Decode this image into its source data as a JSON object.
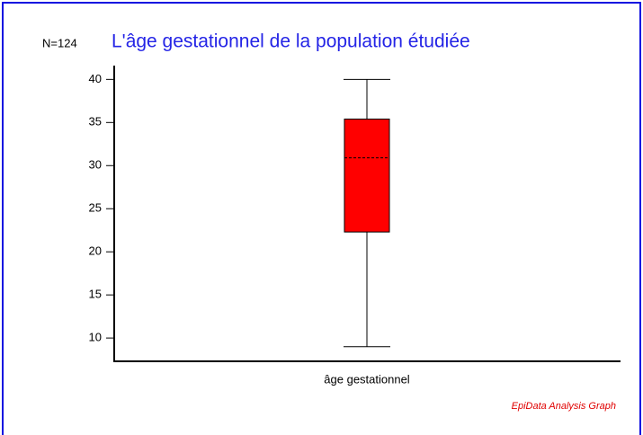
{
  "chart_data": {
    "type": "box",
    "title": "L'âge gestationnel de la population étudiée",
    "note": "N=124",
    "footer": "EpiData Analysis Graph",
    "categories": [
      "âge gestationnel"
    ],
    "boxes": [
      {
        "min": 9,
        "q1": 22.3,
        "median": 30.9,
        "q3": 35.4,
        "max": 40
      }
    ],
    "color": "#ff0000",
    "ylim": [
      7.3,
      41.6
    ],
    "yticks": [
      10,
      15,
      20,
      25,
      30,
      35,
      40
    ]
  }
}
